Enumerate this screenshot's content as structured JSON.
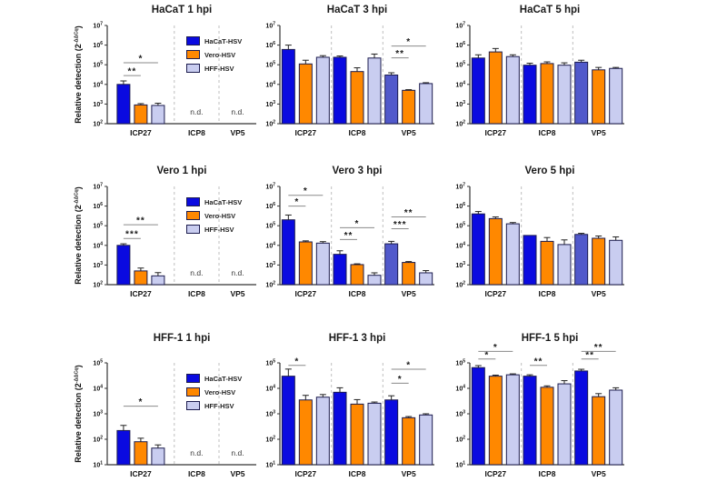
{
  "figure": {
    "ylabel_base": "Relative detection (2",
    "ylabel_sup": "-ΔΔCq",
    "ylabel_close": ")",
    "nd_label": "n.d.",
    "axis_color": "#333333",
    "sig_line_color": "#8a8a8a",
    "separator_color": "#bfbfbf",
    "vp5_blue_override": "#5159cb"
  },
  "legend": {
    "items": [
      {
        "label": "HaCaT-HSV",
        "color": "#0a0ae0"
      },
      {
        "label": "Vero-HSV",
        "color": "#ff8800"
      },
      {
        "label": "HFF-HSV",
        "color": "#c9cdf0"
      }
    ]
  },
  "chart_data": [
    {
      "type": "bar",
      "title": "HaCaT 1 hpi",
      "log_ylim": [
        2,
        7
      ],
      "categories": [
        "ICP27",
        "ICP8",
        "VP5"
      ],
      "series": [
        "HaCaT-HSV",
        "Vero-HSV",
        "HFF-HSV"
      ],
      "values": [
        [
          10000,
          900,
          850
        ],
        [
          null,
          null,
          null
        ],
        [
          null,
          null,
          null
        ]
      ],
      "errors": [
        [
          5000,
          150,
          250
        ],
        [
          null,
          null,
          null
        ],
        [
          null,
          null,
          null
        ]
      ],
      "sig": [
        {
          "cat": 0,
          "a": 0,
          "b": 1,
          "label": "**",
          "exp": 4.45
        },
        {
          "cat": 0,
          "a": 0,
          "b": 2,
          "label": "*",
          "exp": 5.1
        }
      ],
      "show_ylabel": true,
      "show_legend": true,
      "vp5_blue": false
    },
    {
      "type": "bar",
      "title": "HaCaT 3 hpi",
      "log_ylim": [
        2,
        7
      ],
      "categories": [
        "ICP27",
        "ICP8",
        "VP5"
      ],
      "series": [
        "HaCaT-HSV",
        "Vero-HSV",
        "HFF-HSV"
      ],
      "values": [
        [
          600000,
          110000,
          240000
        ],
        [
          240000,
          45000,
          220000
        ],
        [
          30000,
          5000,
          11000
        ]
      ],
      "errors": [
        [
          400000,
          60000,
          50000
        ],
        [
          40000,
          25000,
          130000
        ],
        [
          9000,
          400,
          1200
        ]
      ],
      "sig": [
        {
          "cat": 2,
          "a": 0,
          "b": 1,
          "label": "**",
          "exp": 5.35
        },
        {
          "cat": 2,
          "a": 0,
          "b": 2,
          "label": "*",
          "exp": 5.95
        }
      ],
      "show_ylabel": false,
      "show_legend": false,
      "vp5_blue": true
    },
    {
      "type": "bar",
      "title": "HaCaT 5 hpi",
      "log_ylim": [
        2,
        7
      ],
      "categories": [
        "ICP27",
        "ICP8",
        "VP5"
      ],
      "series": [
        "HaCaT-HSV",
        "Vero-HSV",
        "HFF-HSV"
      ],
      "values": [
        [
          220000,
          450000,
          260000
        ],
        [
          95000,
          115000,
          95000
        ],
        [
          135000,
          55000,
          65000
        ]
      ],
      "errors": [
        [
          100000,
          220000,
          60000
        ],
        [
          25000,
          25000,
          30000
        ],
        [
          35000,
          18000,
          8000
        ]
      ],
      "sig": [],
      "show_ylabel": false,
      "show_legend": false,
      "vp5_blue": true
    },
    {
      "type": "bar",
      "title": "Vero 1 hpi",
      "log_ylim": [
        2,
        7
      ],
      "categories": [
        "ICP27",
        "ICP8",
        "VP5"
      ],
      "series": [
        "HaCaT-HSV",
        "Vero-HSV",
        "HFF-HSV"
      ],
      "values": [
        [
          10000,
          500,
          280
        ],
        [
          null,
          null,
          null
        ],
        [
          null,
          null,
          null
        ]
      ],
      "errors": [
        [
          2000,
          200,
          130
        ],
        [
          null,
          null,
          null
        ],
        [
          null,
          null,
          null
        ]
      ],
      "sig": [
        {
          "cat": 0,
          "a": 0,
          "b": 1,
          "label": "***",
          "exp": 4.35
        },
        {
          "cat": 0,
          "a": 0,
          "b": 2,
          "label": "**",
          "exp": 5.05
        }
      ],
      "show_ylabel": true,
      "show_legend": true,
      "vp5_blue": false
    },
    {
      "type": "bar",
      "title": "Vero 3 hpi",
      "log_ylim": [
        2,
        7
      ],
      "categories": [
        "ICP27",
        "ICP8",
        "VP5"
      ],
      "series": [
        "HaCaT-HSV",
        "Vero-HSV",
        "HFF-HSV"
      ],
      "values": [
        [
          200000,
          15000,
          13000
        ],
        [
          3500,
          1050,
          300
        ],
        [
          12000,
          1350,
          400
        ]
      ],
      "errors": [
        [
          150000,
          2000,
          2500
        ],
        [
          1800,
          100,
          100
        ],
        [
          4000,
          150,
          120
        ]
      ],
      "sig": [
        {
          "cat": 0,
          "a": 0,
          "b": 1,
          "label": "*",
          "exp": 6.0
        },
        {
          "cat": 0,
          "a": 0,
          "b": 2,
          "label": "*",
          "exp": 6.55
        },
        {
          "cat": 1,
          "a": 0,
          "b": 1,
          "label": "**",
          "exp": 4.3
        },
        {
          "cat": 1,
          "a": 0,
          "b": 2,
          "label": "*",
          "exp": 4.9
        },
        {
          "cat": 2,
          "a": 0,
          "b": 1,
          "label": "***",
          "exp": 4.85
        },
        {
          "cat": 2,
          "a": 0,
          "b": 2,
          "label": "**",
          "exp": 5.45
        }
      ],
      "show_ylabel": false,
      "show_legend": false,
      "vp5_blue": true
    },
    {
      "type": "bar",
      "title": "Vero 5 hpi",
      "log_ylim": [
        2,
        7
      ],
      "categories": [
        "ICP27",
        "ICP8",
        "VP5"
      ],
      "series": [
        "HaCaT-HSV",
        "Vero-HSV",
        "HFF-HSV"
      ],
      "values": [
        [
          400000,
          230000,
          125000
        ],
        [
          32000,
          16000,
          11000
        ],
        [
          36000,
          23000,
          18000
        ]
      ],
      "errors": [
        [
          130000,
          50000,
          20000
        ],
        [
          0,
          9000,
          8000
        ],
        [
          5000,
          7000,
          9000
        ]
      ],
      "sig": [],
      "show_ylabel": false,
      "show_legend": false,
      "vp5_blue": true
    },
    {
      "type": "bar",
      "title": "HFF-1 1 hpi",
      "log_ylim": [
        1,
        5
      ],
      "categories": [
        "ICP27",
        "ICP8",
        "VP5"
      ],
      "series": [
        "HaCaT-HSV",
        "Vero-HSV",
        "HFF-HSV"
      ],
      "values": [
        [
          220,
          80,
          45
        ],
        [
          null,
          null,
          null
        ],
        [
          null,
          null,
          null
        ]
      ],
      "errors": [
        [
          130,
          30,
          15
        ],
        [
          null,
          null,
          null
        ],
        [
          null,
          null,
          null
        ]
      ],
      "sig": [
        {
          "cat": 0,
          "a": 0,
          "b": 2,
          "label": "*",
          "exp": 3.3
        }
      ],
      "show_ylabel": true,
      "show_legend": true,
      "vp5_blue": false
    },
    {
      "type": "bar",
      "title": "HFF-1 3 hpi",
      "log_ylim": [
        1,
        5
      ],
      "categories": [
        "ICP27",
        "ICP8",
        "VP5"
      ],
      "series": [
        "HaCaT-HSV",
        "Vero-HSV",
        "HFF-HSV"
      ],
      "values": [
        [
          30000,
          3500,
          4500
        ],
        [
          7000,
          2400,
          2600
        ],
        [
          3500,
          700,
          900
        ]
      ],
      "errors": [
        [
          27000,
          1800,
          1200
        ],
        [
          3500,
          1200,
          300
        ],
        [
          1600,
          80,
          100
        ]
      ],
      "sig": [
        {
          "cat": 0,
          "a": 0,
          "b": 1,
          "label": "*",
          "exp": 4.9
        },
        {
          "cat": 2,
          "a": 0,
          "b": 1,
          "label": "*",
          "exp": 4.2
        },
        {
          "cat": 2,
          "a": 0,
          "b": 2,
          "label": "*",
          "exp": 4.75
        }
      ],
      "show_ylabel": false,
      "show_legend": false,
      "vp5_blue": false
    },
    {
      "type": "bar",
      "title": "HFF-1 5 hpi",
      "log_ylim": [
        1,
        5
      ],
      "categories": [
        "ICP27",
        "ICP8",
        "VP5"
      ],
      "series": [
        "HaCaT-HSV",
        "Vero-HSV",
        "HFF-HSV"
      ],
      "values": [
        [
          65000,
          30000,
          34000
        ],
        [
          30000,
          11000,
          15000
        ],
        [
          48000,
          4700,
          8500
        ]
      ],
      "errors": [
        [
          13000,
          3000,
          3000
        ],
        [
          4000,
          1500,
          5000
        ],
        [
          8000,
          1500,
          2000
        ]
      ],
      "sig": [
        {
          "cat": 0,
          "a": 0,
          "b": 1,
          "label": "*",
          "exp": 5.15
        },
        {
          "cat": 0,
          "a": 0,
          "b": 2,
          "label": "*",
          "exp": 5.45
        },
        {
          "cat": 1,
          "a": 0,
          "b": 1,
          "label": "**",
          "exp": 4.9
        },
        {
          "cat": 2,
          "a": 0,
          "b": 1,
          "label": "**",
          "exp": 5.15
        },
        {
          "cat": 2,
          "a": 0,
          "b": 2,
          "label": "**",
          "exp": 5.45
        }
      ],
      "show_ylabel": false,
      "show_legend": false,
      "vp5_blue": false
    }
  ]
}
